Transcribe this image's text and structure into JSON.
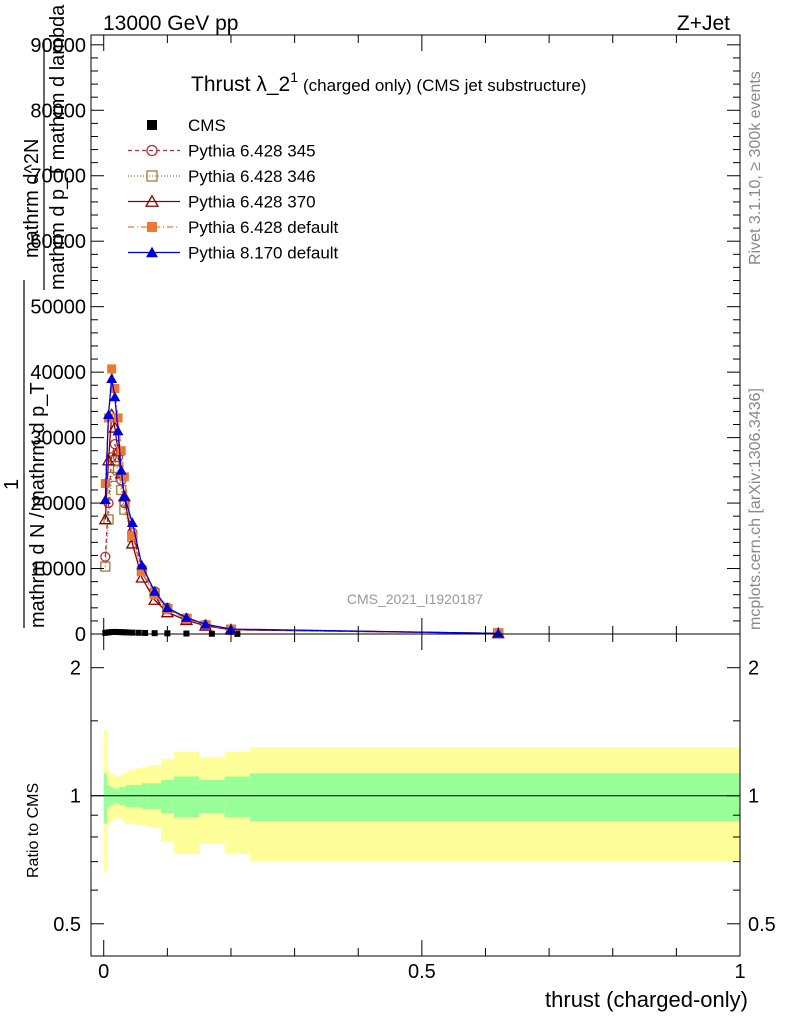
{
  "chart_data": {
    "type": "line",
    "header_left": "13000 GeV pp",
    "header_right": "Z+Jet",
    "title_main": "Thrust λ_2",
    "title_sup": "1",
    "title_suffix": "(charged only) (CMS jet substructure)",
    "analysis_id": "CMS_2021_I1920187",
    "side_top": "Rivet 3.1.10, ≥ 300k events",
    "side_bottom": "mcplots.cern.ch [arXiv:1306.3436]",
    "ylabel_frac_num": "1",
    "ylabel_frac_den": "mathrm d N / mathrm d p_T",
    "ylabel_top_num": "mathrm d^2N",
    "ylabel_top_den": "mathrm d p_T mathrm d lambda",
    "xlabel": "thrust (charged-only)",
    "ratio_ylabel": "Ratio to CMS",
    "xlim": [
      -0.02,
      1.0
    ],
    "ylim_main": [
      0,
      91500
    ],
    "ylim_ratio": [
      0.42,
      2.4
    ],
    "x_ticks": [
      0,
      0.5,
      1
    ],
    "x_tick_labels": [
      "0",
      "0.5",
      "1"
    ],
    "y_ticks_main": [
      0,
      10000,
      20000,
      30000,
      40000,
      50000,
      60000,
      70000,
      80000,
      90000
    ],
    "y_tick_labels_main": [
      "0",
      "10000",
      "20000",
      "30000",
      "40000",
      "50000",
      "60000",
      "70000",
      "80000",
      "90000"
    ],
    "y_ticks_ratio": [
      0.5,
      1,
      2
    ],
    "y_tick_labels_ratio": [
      "0.5",
      "1",
      "2"
    ],
    "series": [
      {
        "name": "CMS",
        "color": "#000000",
        "marker": "square-filled",
        "dash": "none",
        "x": [
          0.0025,
          0.0075,
          0.0125,
          0.0175,
          0.0225,
          0.0275,
          0.0325,
          0.0375,
          0.045,
          0.055,
          0.065,
          0.08,
          0.1,
          0.13,
          0.17,
          0.21,
          0.62
        ],
        "y": [
          180,
          250,
          300,
          320,
          300,
          280,
          260,
          240,
          210,
          190,
          160,
          130,
          100,
          70,
          40,
          20,
          5
        ]
      },
      {
        "name": "Pythia 6.428 345",
        "color": "#b03040",
        "marker": "circle-open",
        "dash": "4,3",
        "x": [
          0.0025,
          0.0075,
          0.0125,
          0.0175,
          0.0225,
          0.0275,
          0.0325,
          0.045,
          0.06,
          0.08,
          0.1,
          0.13,
          0.16,
          0.2,
          0.62
        ],
        "y": [
          11800,
          20000,
          27000,
          29000,
          27000,
          23500,
          20000,
          15500,
          10000,
          6500,
          4000,
          2400,
          1400,
          700,
          100
        ]
      },
      {
        "name": "Pythia 6.428 346",
        "color": "#9a7d3a",
        "marker": "square-open",
        "dash": "1,2",
        "x": [
          0.0025,
          0.0075,
          0.0125,
          0.0175,
          0.0225,
          0.0275,
          0.0325,
          0.045,
          0.06,
          0.08,
          0.1,
          0.13,
          0.16,
          0.2,
          0.62
        ],
        "y": [
          10300,
          17500,
          24000,
          26500,
          25000,
          22000,
          19000,
          14800,
          9600,
          6200,
          3800,
          2300,
          1300,
          650,
          100
        ]
      },
      {
        "name": "Pythia 6.428 370",
        "color": "#8b0000",
        "marker": "triangle-open",
        "dash": "none",
        "x": [
          0.0025,
          0.0075,
          0.0125,
          0.0175,
          0.0225,
          0.0275,
          0.0325,
          0.045,
          0.06,
          0.08,
          0.1,
          0.13,
          0.16,
          0.2,
          0.62
        ],
        "y": [
          17500,
          26500,
          33500,
          31500,
          28000,
          24500,
          21000,
          13800,
          8600,
          5200,
          3300,
          2100,
          1250,
          650,
          100
        ]
      },
      {
        "name": "Pythia 6.428 default",
        "color": "#ee7733",
        "marker": "square-filled",
        "dash": "6,3,1,3",
        "x": [
          0.0025,
          0.0075,
          0.0125,
          0.0175,
          0.0225,
          0.0275,
          0.0325,
          0.045,
          0.06,
          0.08,
          0.1,
          0.13,
          0.16,
          0.2,
          0.62
        ],
        "y": [
          23000,
          33000,
          40500,
          37500,
          33000,
          28000,
          24000,
          15000,
          9500,
          6000,
          3800,
          2300,
          1400,
          700,
          100
        ]
      },
      {
        "name": "Pythia 8.170 default",
        "color": "#0000dd",
        "marker": "triangle-filled",
        "dash": "none",
        "x": [
          0.0025,
          0.0075,
          0.0125,
          0.0175,
          0.0225,
          0.0275,
          0.0325,
          0.045,
          0.06,
          0.08,
          0.1,
          0.13,
          0.16,
          0.2,
          0.62
        ],
        "y": [
          20500,
          33500,
          39000,
          36200,
          31000,
          25000,
          21000,
          17000,
          10500,
          6500,
          4000,
          2500,
          1500,
          750,
          100
        ]
      }
    ],
    "ratio_bands": {
      "x_edges": [
        0,
        0.005,
        0.01,
        0.015,
        0.02,
        0.025,
        0.03,
        0.035,
        0.04,
        0.05,
        0.06,
        0.07,
        0.09,
        0.11,
        0.15,
        0.19,
        0.23,
        1.0
      ],
      "yellow_lo": [
        0.66,
        0.85,
        0.87,
        0.88,
        0.89,
        0.88,
        0.87,
        0.86,
        0.86,
        0.85,
        0.85,
        0.84,
        0.78,
        0.73,
        0.77,
        0.73,
        0.7,
        0.68
      ],
      "yellow_hi": [
        1.43,
        1.15,
        1.13,
        1.12,
        1.11,
        1.12,
        1.13,
        1.14,
        1.15,
        1.16,
        1.17,
        1.18,
        1.22,
        1.27,
        1.23,
        1.27,
        1.3,
        1.32
      ],
      "green_lo": [
        0.86,
        0.94,
        0.95,
        0.96,
        0.96,
        0.95,
        0.95,
        0.94,
        0.94,
        0.94,
        0.93,
        0.93,
        0.91,
        0.89,
        0.91,
        0.89,
        0.87,
        0.86
      ],
      "green_hi": [
        1.13,
        1.06,
        1.05,
        1.04,
        1.04,
        1.05,
        1.05,
        1.06,
        1.06,
        1.06,
        1.07,
        1.07,
        1.09,
        1.11,
        1.09,
        1.11,
        1.13,
        1.14
      ],
      "yellow_color": "#ffff99",
      "green_color": "#99ff99"
    }
  }
}
